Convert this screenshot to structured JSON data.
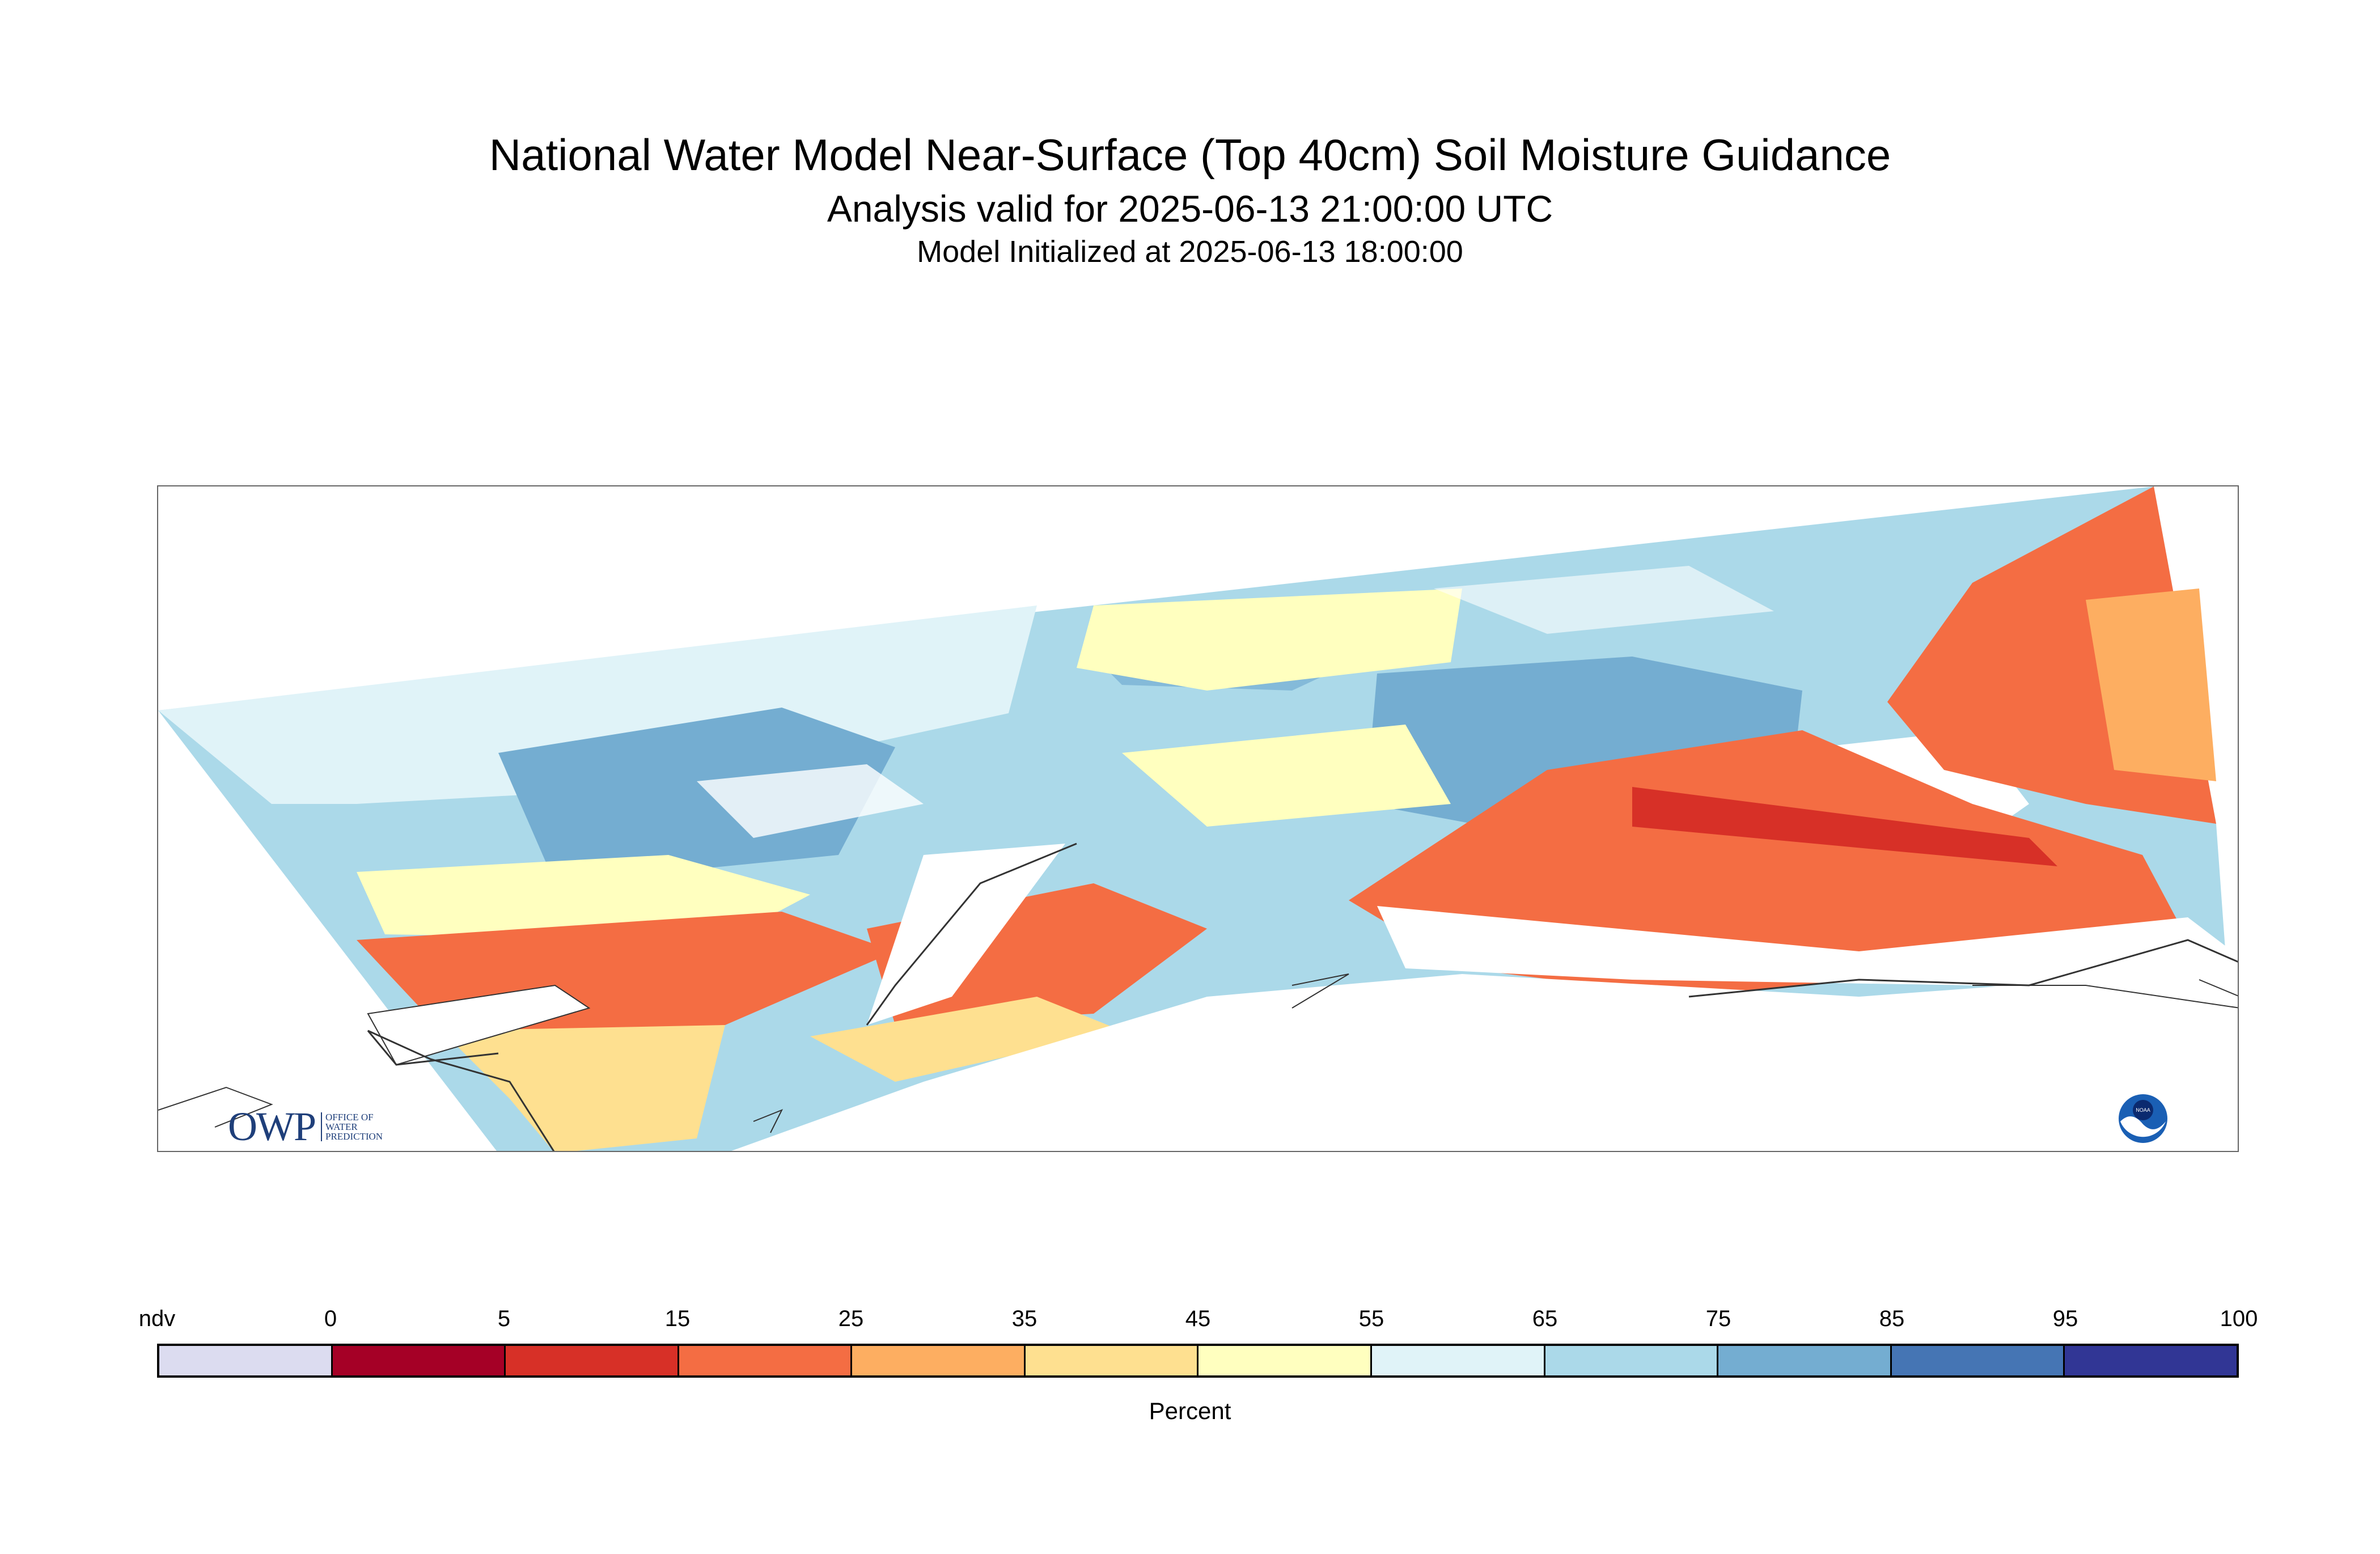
{
  "title": "National Water Model Near-Surface (Top 40cm) Soil Moisture Guidance",
  "subtitle": "Analysis valid for 2025-06-13 21:00:00 UTC",
  "init": "Model Initialized at 2025-06-13 18:00:00",
  "logos": {
    "owp_letters": "OWP",
    "owp_sub": [
      "OFFICE OF",
      "WATER",
      "PREDICTION"
    ],
    "noaa_text": "NOAA"
  },
  "legend": {
    "title": "Percent",
    "labels": [
      "ndv",
      "0",
      "5",
      "15",
      "25",
      "35",
      "45",
      "55",
      "65",
      "75",
      "85",
      "95",
      "100"
    ],
    "colors": [
      "#dcdcf0",
      "#a50026",
      "#d73027",
      "#f46d43",
      "#fdae61",
      "#fee090",
      "#ffffbf",
      "#e0f3f8",
      "#abd9e9",
      "#74add1",
      "#4575b4",
      "#313695"
    ]
  }
}
